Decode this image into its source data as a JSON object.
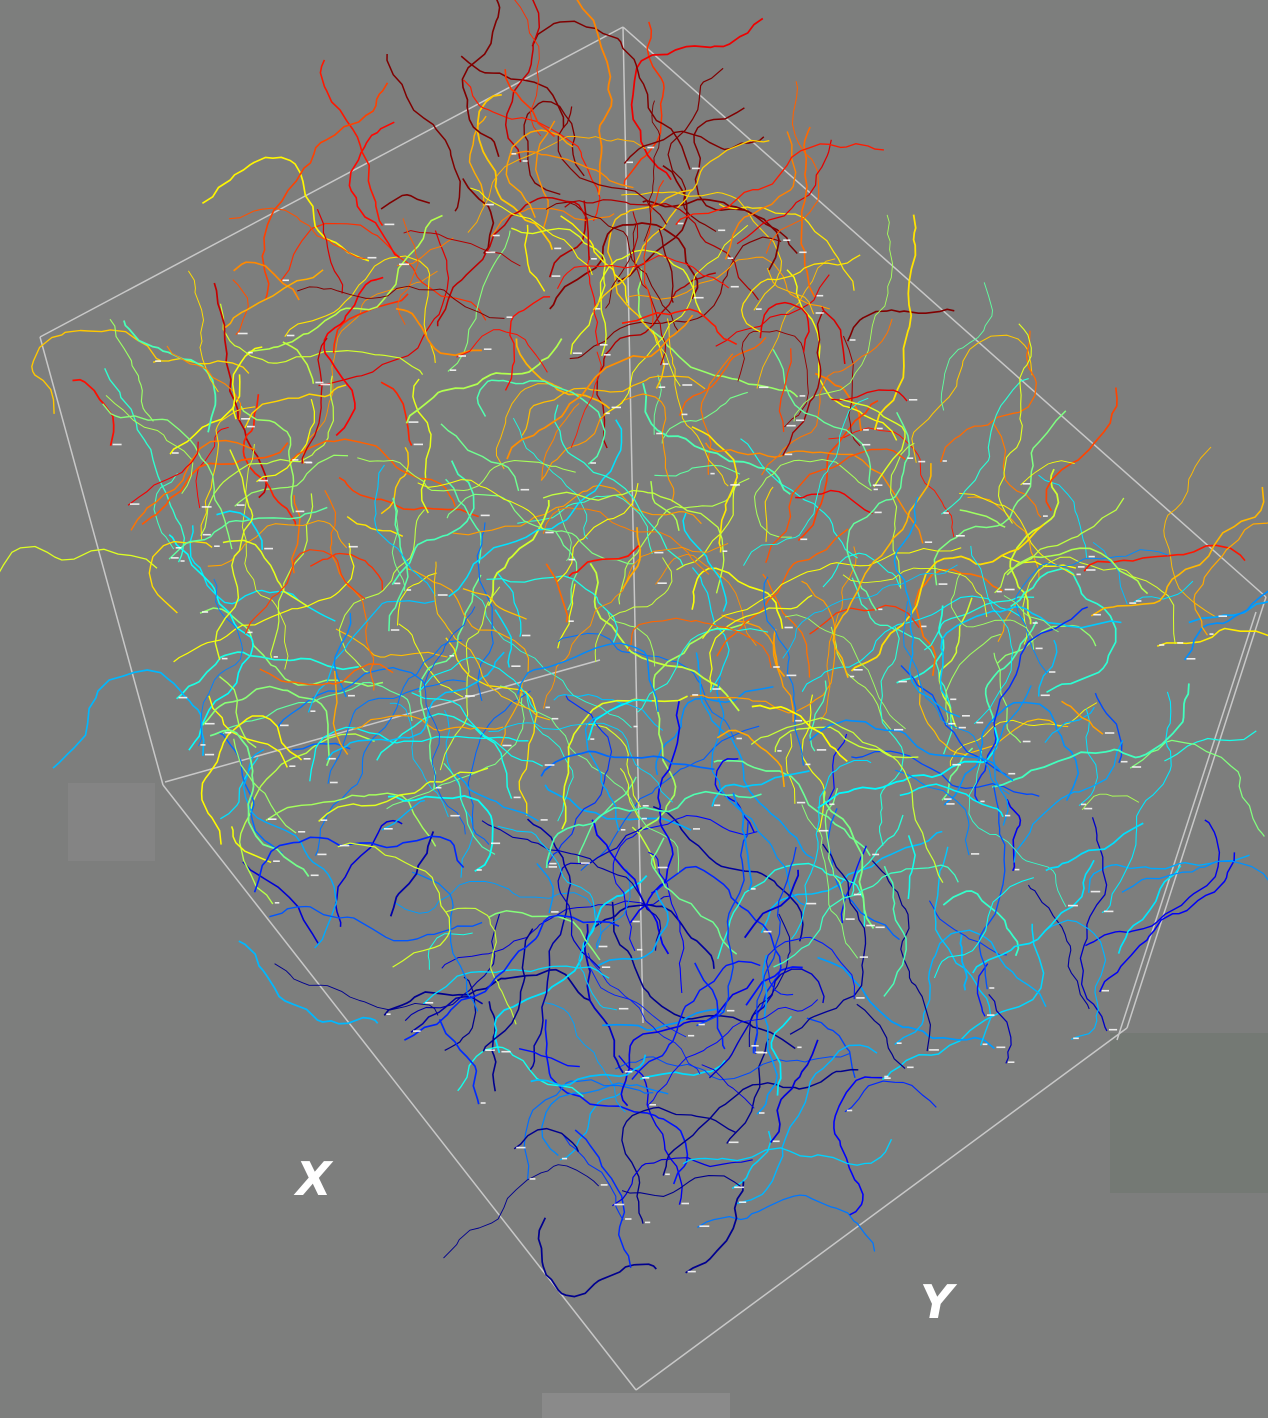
{
  "viewer": {
    "background_color": "#7d7e7d",
    "bounding_box_color": "#c8c8c8",
    "label_color": "#ffffff"
  },
  "axes": {
    "x_label": "X",
    "y_label": "Y"
  },
  "tracks": {
    "colormap": "jet",
    "colormap_stops": [
      "#00008f",
      "#0000ff",
      "#0080ff",
      "#00ffff",
      "#80ff80",
      "#ffff00",
      "#ff8000",
      "#ff0000",
      "#800000"
    ]
  }
}
